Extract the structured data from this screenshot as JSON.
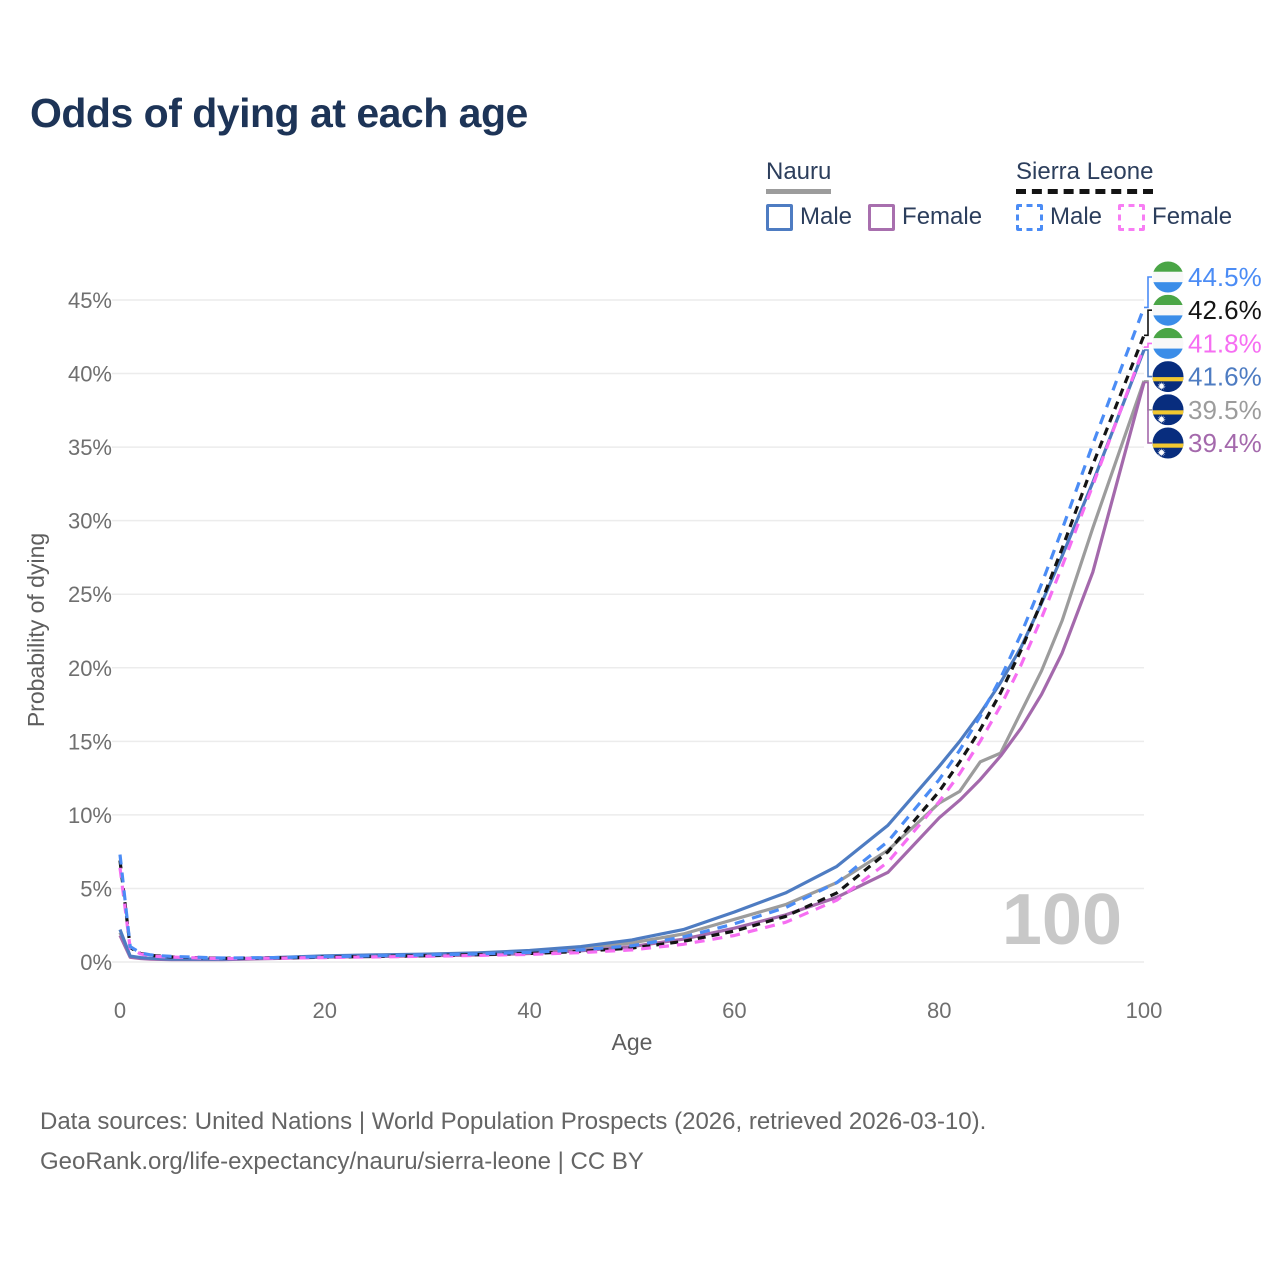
{
  "page": {
    "title": "Odds of dying at each age"
  },
  "legend": {
    "groups": [
      {
        "country": "Nauru",
        "line_style": "solid",
        "underline_color": "#9c9c9c",
        "items": [
          {
            "label": "Male",
            "color": "#4e7cc2",
            "style": "solid"
          },
          {
            "label": "Female",
            "color": "#a86fae",
            "style": "solid"
          }
        ]
      },
      {
        "country": "Sierra Leone",
        "line_style": "dashed",
        "underline_color": "#141414",
        "items": [
          {
            "label": "Male",
            "color": "#4b8cf5",
            "style": "dashed"
          },
          {
            "label": "Female",
            "color": "#f87df4",
            "style": "dashed"
          }
        ]
      }
    ]
  },
  "chart_data": {
    "type": "line",
    "title": "Odds of dying at each age",
    "xlabel": "Age",
    "ylabel": "Probability of dying",
    "xlim": [
      0,
      100
    ],
    "ylim": [
      0,
      45
    ],
    "x_ticks": [
      0,
      20,
      40,
      60,
      80,
      100
    ],
    "y_ticks_percent": [
      0,
      5,
      10,
      15,
      20,
      25,
      30,
      35,
      40,
      45
    ],
    "grid": "horizontal",
    "watermark": "100",
    "ages": [
      0,
      1,
      2,
      3,
      4,
      5,
      10,
      15,
      20,
      25,
      30,
      35,
      40,
      45,
      50,
      55,
      60,
      65,
      70,
      75,
      80,
      82,
      84,
      86,
      88,
      90,
      92,
      95,
      100
    ],
    "series": [
      {
        "id": "nauru-total",
        "name": "Nauru",
        "country": "Nauru",
        "sex": "Both sexes",
        "color": "#9c9c9c",
        "dashed": false,
        "dash_pattern": "",
        "end_label": "39.5%",
        "flag": "nauru",
        "values": [
          2.0,
          0.36,
          0.27,
          0.22,
          0.2,
          0.18,
          0.18,
          0.27,
          0.38,
          0.43,
          0.48,
          0.55,
          0.68,
          0.9,
          1.3,
          1.9,
          2.9,
          3.9,
          5.4,
          7.6,
          10.8,
          11.6,
          13.6,
          14.2,
          17.0,
          19.8,
          23.2,
          29.5,
          39.5
        ]
      },
      {
        "id": "nauru-female",
        "name": "Nauru — Female",
        "country": "Nauru",
        "sex": "Female",
        "color": "#a469ac",
        "dashed": false,
        "dash_pattern": "",
        "end_label": "39.4%",
        "flag": "nauru",
        "values": [
          1.8,
          0.32,
          0.24,
          0.2,
          0.18,
          0.16,
          0.16,
          0.24,
          0.33,
          0.38,
          0.42,
          0.48,
          0.58,
          0.76,
          1.05,
          1.55,
          2.3,
          3.2,
          4.4,
          6.1,
          9.8,
          11.0,
          12.4,
          14.0,
          15.9,
          18.2,
          21.0,
          26.5,
          39.4
        ]
      },
      {
        "id": "nauru-male",
        "name": "Nauru — Male",
        "country": "Nauru",
        "sex": "Male",
        "color": "#4e7cc2",
        "dashed": false,
        "dash_pattern": "",
        "end_label": "41.6%",
        "flag": "nauru",
        "values": [
          2.2,
          0.4,
          0.3,
          0.25,
          0.22,
          0.2,
          0.2,
          0.3,
          0.42,
          0.48,
          0.54,
          0.62,
          0.78,
          1.05,
          1.5,
          2.2,
          3.4,
          4.7,
          6.5,
          9.3,
          13.3,
          15.0,
          16.9,
          19.0,
          21.4,
          24.4,
          27.6,
          32.6,
          41.6
        ]
      },
      {
        "id": "sierra-leone-total",
        "name": "Sierra Leone",
        "country": "Sierra Leone",
        "sex": "Both sexes",
        "color": "#141414",
        "dashed": true,
        "dash_pattern": "8 6",
        "end_label": "42.6%",
        "flag": "sierra-leone",
        "values": [
          6.9,
          0.98,
          0.58,
          0.45,
          0.4,
          0.35,
          0.25,
          0.28,
          0.33,
          0.38,
          0.43,
          0.5,
          0.58,
          0.72,
          0.95,
          1.4,
          2.1,
          3.1,
          4.7,
          7.5,
          11.6,
          13.6,
          15.8,
          18.3,
          21.2,
          24.5,
          28.1,
          33.8,
          42.6
        ]
      },
      {
        "id": "sierra-leone-female",
        "name": "Sierra Leone — Female",
        "country": "Sierra Leone",
        "sex": "Female",
        "color": "#f66ef2",
        "dashed": true,
        "dash_pattern": "10 8",
        "end_label": "41.8%",
        "flag": "sierra-leone",
        "values": [
          6.4,
          0.92,
          0.55,
          0.42,
          0.37,
          0.33,
          0.23,
          0.26,
          0.3,
          0.35,
          0.39,
          0.45,
          0.52,
          0.64,
          0.82,
          1.2,
          1.8,
          2.7,
          4.2,
          6.8,
          10.9,
          12.8,
          15.0,
          17.4,
          20.2,
          23.4,
          26.9,
          32.4,
          41.8
        ]
      },
      {
        "id": "sierra-leone-male",
        "name": "Sierra Leone — Male",
        "country": "Sierra Leone",
        "sex": "Male",
        "color": "#4b8cf5",
        "dashed": true,
        "dash_pattern": "10 8",
        "end_label": "44.5%",
        "flag": "sierra-leone",
        "values": [
          7.3,
          1.05,
          0.62,
          0.48,
          0.42,
          0.38,
          0.27,
          0.3,
          0.36,
          0.42,
          0.48,
          0.55,
          0.65,
          0.82,
          1.1,
          1.7,
          2.6,
          3.7,
          5.4,
          8.2,
          12.4,
          14.4,
          16.7,
          19.3,
          22.3,
          25.7,
          29.4,
          35.2,
          44.5
        ]
      }
    ]
  },
  "flags": {
    "sierra_leone": {
      "green": "#4aa546",
      "white": "#f8f8f8",
      "blue": "#3b8de8"
    },
    "nauru": {
      "navy": "#082d7e",
      "yellow": "#f2c830",
      "star": "#ffffff"
    }
  },
  "footer": {
    "line1": "Data sources: United Nations | World Population Prospects (2026, retrieved 2026-03-10).",
    "line2": "GeoRank.org/life-expectancy/nauru/sierra-leone | CC BY"
  }
}
